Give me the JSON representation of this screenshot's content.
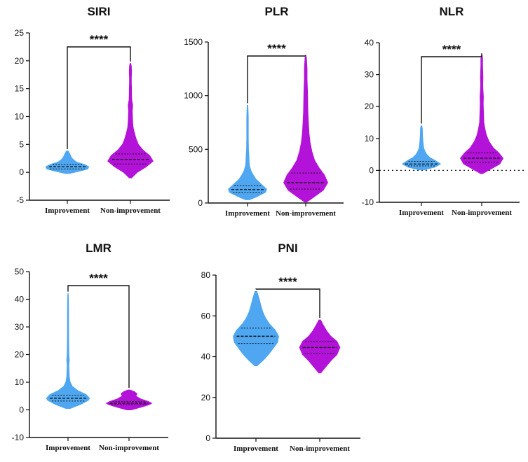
{
  "colors": {
    "improvement": "#4ea7f0",
    "non_improvement": "#b312d8",
    "axis": "#111111"
  },
  "chart_data": [
    {
      "type": "violin",
      "title": "SIRI",
      "categories": [
        "Improvement",
        "Non-improvement"
      ],
      "yticks": [
        -5,
        0,
        5,
        10,
        15,
        20,
        25
      ],
      "ylim": [
        -5,
        25
      ],
      "significance": "****",
      "zero_line": false,
      "series": [
        {
          "name": "Improvement",
          "min": -0.2,
          "max": 3.8,
          "median": 1.0,
          "q1": 0.6,
          "q3": 1.4,
          "width": 0.9,
          "width_unit": 1.0,
          "profile": [
            [
              -0.2,
              0.1
            ],
            [
              0.2,
              0.55
            ],
            [
              0.6,
              0.95
            ],
            [
              1.0,
              1.0
            ],
            [
              1.4,
              0.8
            ],
            [
              1.8,
              0.45
            ],
            [
              2.2,
              0.3
            ],
            [
              2.6,
              0.2
            ],
            [
              3.0,
              0.15
            ],
            [
              3.4,
              0.1
            ],
            [
              3.8,
              0.05
            ]
          ]
        },
        {
          "name": "Non-improvement",
          "min": -1.0,
          "max": 19.5,
          "median": 2.3,
          "q1": 1.5,
          "q3": 3.3,
          "width": 0.95,
          "width_unit": 1.0,
          "profile": [
            [
              -1.0,
              0.05
            ],
            [
              0.0,
              0.3
            ],
            [
              1.0,
              0.7
            ],
            [
              2.0,
              1.0
            ],
            [
              3.0,
              0.85
            ],
            [
              4.0,
              0.55
            ],
            [
              5.0,
              0.35
            ],
            [
              6.0,
              0.25
            ],
            [
              7.0,
              0.18
            ],
            [
              8.0,
              0.12
            ],
            [
              9.0,
              0.1
            ],
            [
              10.0,
              0.09
            ],
            [
              11.0,
              0.08
            ],
            [
              12.0,
              0.1
            ],
            [
              13.0,
              0.06
            ],
            [
              14.0,
              0.05
            ],
            [
              15.0,
              0.05
            ],
            [
              16.0,
              0.04
            ],
            [
              17.0,
              0.04
            ],
            [
              18.0,
              0.05
            ],
            [
              19.0,
              0.04
            ],
            [
              19.5,
              0.02
            ]
          ]
        }
      ]
    },
    {
      "type": "violin",
      "title": "PLR",
      "categories": [
        "Improvement",
        "Non-improvement"
      ],
      "yticks": [
        0,
        500,
        1000,
        1500
      ],
      "ylim": [
        0,
        1500
      ],
      "significance": "****",
      "zero_line": false,
      "series": [
        {
          "name": "Improvement",
          "min": 30,
          "max": 910,
          "median": 125,
          "q1": 95,
          "q3": 160,
          "width": 0.85,
          "width_unit": 1.0,
          "profile": [
            [
              30,
              0.1
            ],
            [
              60,
              0.5
            ],
            [
              100,
              0.95
            ],
            [
              130,
              1.0
            ],
            [
              170,
              0.75
            ],
            [
              220,
              0.45
            ],
            [
              260,
              0.3
            ],
            [
              300,
              0.18
            ],
            [
              350,
              0.1
            ],
            [
              400,
              0.08
            ],
            [
              450,
              0.07
            ],
            [
              500,
              0.05
            ],
            [
              600,
              0.04
            ],
            [
              700,
              0.04
            ],
            [
              800,
              0.04
            ],
            [
              910,
              0.02
            ]
          ]
        },
        {
          "name": "Non-improvement",
          "min": 10,
          "max": 1360,
          "median": 190,
          "q1": 130,
          "q3": 280,
          "width": 0.98,
          "width_unit": 1.0,
          "profile": [
            [
              10,
              0.05
            ],
            [
              60,
              0.4
            ],
            [
              120,
              0.8
            ],
            [
              190,
              1.0
            ],
            [
              260,
              0.85
            ],
            [
              330,
              0.6
            ],
            [
              400,
              0.4
            ],
            [
              480,
              0.28
            ],
            [
              560,
              0.2
            ],
            [
              650,
              0.15
            ],
            [
              750,
              0.12
            ],
            [
              850,
              0.1
            ],
            [
              950,
              0.09
            ],
            [
              1050,
              0.08
            ],
            [
              1150,
              0.06
            ],
            [
              1250,
              0.06
            ],
            [
              1360,
              0.03
            ]
          ]
        }
      ]
    },
    {
      "type": "violin",
      "title": "NLR",
      "categories": [
        "Improvement",
        "Non-improvement"
      ],
      "yticks": [
        -10,
        0,
        10,
        20,
        30,
        40
      ],
      "ylim": [
        -10,
        40
      ],
      "significance": "****",
      "zero_line": true,
      "series": [
        {
          "name": "Improvement",
          "min": 0.2,
          "max": 14.0,
          "median": 2.0,
          "q1": 1.4,
          "q3": 2.8,
          "width": 0.85,
          "width_unit": 1.0,
          "profile": [
            [
              0.2,
              0.15
            ],
            [
              1.0,
              0.7
            ],
            [
              2.0,
              1.0
            ],
            [
              3.0,
              0.75
            ],
            [
              4.0,
              0.45
            ],
            [
              5.0,
              0.28
            ],
            [
              6.0,
              0.18
            ],
            [
              7.0,
              0.12
            ],
            [
              8.0,
              0.1
            ],
            [
              9.0,
              0.08
            ],
            [
              10.0,
              0.07
            ],
            [
              11.0,
              0.06
            ],
            [
              12.0,
              0.05
            ],
            [
              13.0,
              0.05
            ],
            [
              14.0,
              0.02
            ]
          ]
        },
        {
          "name": "Non-improvement",
          "min": -1.0,
          "max": 36.0,
          "median": 3.8,
          "q1": 2.5,
          "q3": 5.5,
          "width": 0.95,
          "width_unit": 1.0,
          "profile": [
            [
              -1.0,
              0.05
            ],
            [
              0.5,
              0.45
            ],
            [
              2.0,
              0.85
            ],
            [
              3.8,
              1.0
            ],
            [
              5.5,
              0.8
            ],
            [
              7.0,
              0.55
            ],
            [
              9.0,
              0.35
            ],
            [
              11.0,
              0.22
            ],
            [
              13.0,
              0.15
            ],
            [
              15.0,
              0.1
            ],
            [
              17.0,
              0.09
            ],
            [
              19.0,
              0.08
            ],
            [
              21.0,
              0.07
            ],
            [
              23.0,
              0.08
            ],
            [
              25.0,
              0.06
            ],
            [
              27.0,
              0.05
            ],
            [
              29.0,
              0.06
            ],
            [
              31.0,
              0.05
            ],
            [
              33.0,
              0.04
            ],
            [
              35.0,
              0.04
            ],
            [
              36.0,
              0.02
            ]
          ]
        }
      ]
    },
    {
      "type": "violin",
      "title": "LMR",
      "categories": [
        "Improvement",
        "Non-improvement"
      ],
      "yticks": [
        -10,
        0,
        10,
        20,
        30,
        40,
        50
      ],
      "ylim": [
        -10,
        50
      ],
      "significance": "****",
      "zero_line": false,
      "series": [
        {
          "name": "Improvement",
          "min": 0.5,
          "max": 42.0,
          "median": 4.2,
          "q1": 3.2,
          "q3": 5.3,
          "width": 0.9,
          "width_unit": 1.0,
          "profile": [
            [
              0.5,
              0.1
            ],
            [
              2.0,
              0.6
            ],
            [
              3.5,
              0.95
            ],
            [
              4.2,
              1.0
            ],
            [
              5.5,
              0.85
            ],
            [
              7.0,
              0.45
            ],
            [
              8.5,
              0.2
            ],
            [
              10.0,
              0.1
            ],
            [
              12.0,
              0.06
            ],
            [
              14.0,
              0.05
            ],
            [
              16.0,
              0.04
            ],
            [
              18.0,
              0.06
            ],
            [
              20.0,
              0.04
            ],
            [
              25.0,
              0.03
            ],
            [
              30.0,
              0.025
            ],
            [
              35.0,
              0.025
            ],
            [
              40.0,
              0.02
            ],
            [
              42.0,
              0.01
            ]
          ]
        },
        {
          "name": "Non-improvement",
          "min": 0.0,
          "max": 7.2,
          "median": 2.4,
          "q1": 1.9,
          "q3": 3.0,
          "width": 0.95,
          "width_unit": 1.0,
          "profile": [
            [
              0.0,
              0.1
            ],
            [
              1.0,
              0.55
            ],
            [
              1.9,
              0.9
            ],
            [
              2.4,
              1.0
            ],
            [
              3.0,
              0.85
            ],
            [
              4.0,
              0.5
            ],
            [
              5.0,
              0.3
            ],
            [
              5.8,
              0.35
            ],
            [
              6.5,
              0.25
            ],
            [
              7.2,
              0.05
            ]
          ]
        }
      ]
    },
    {
      "type": "violin",
      "title": "PNI",
      "categories": [
        "Improvement",
        "Non-improvement"
      ],
      "yticks": [
        0,
        20,
        40,
        60,
        80
      ],
      "ylim": [
        0,
        80
      ],
      "significance": "****",
      "zero_line": false,
      "series": [
        {
          "name": "Improvement",
          "min": 35.5,
          "max": 72.0,
          "median": 50.0,
          "q1": 46.5,
          "q3": 54.0,
          "width": 0.9,
          "width_unit": 1.0,
          "profile": [
            [
              35.5,
              0.05
            ],
            [
              38.0,
              0.3
            ],
            [
              41.0,
              0.55
            ],
            [
              44.0,
              0.75
            ],
            [
              47.0,
              0.95
            ],
            [
              50.0,
              1.0
            ],
            [
              53.0,
              0.85
            ],
            [
              56.0,
              0.6
            ],
            [
              59.0,
              0.42
            ],
            [
              62.0,
              0.3
            ],
            [
              65.0,
              0.22
            ],
            [
              68.0,
              0.15
            ],
            [
              70.0,
              0.1
            ],
            [
              72.0,
              0.04
            ]
          ]
        },
        {
          "name": "Non-improvement",
          "min": 32.0,
          "max": 58.0,
          "median": 44.5,
          "q1": 41.5,
          "q3": 47.5,
          "width": 0.8,
          "width_unit": 1.0,
          "profile": [
            [
              32.0,
              0.05
            ],
            [
              35.0,
              0.3
            ],
            [
              38.0,
              0.55
            ],
            [
              41.0,
              0.85
            ],
            [
              44.5,
              1.0
            ],
            [
              47.5,
              0.85
            ],
            [
              50.0,
              0.55
            ],
            [
              52.5,
              0.35
            ],
            [
              55.0,
              0.2
            ],
            [
              58.0,
              0.04
            ]
          ]
        }
      ]
    }
  ]
}
